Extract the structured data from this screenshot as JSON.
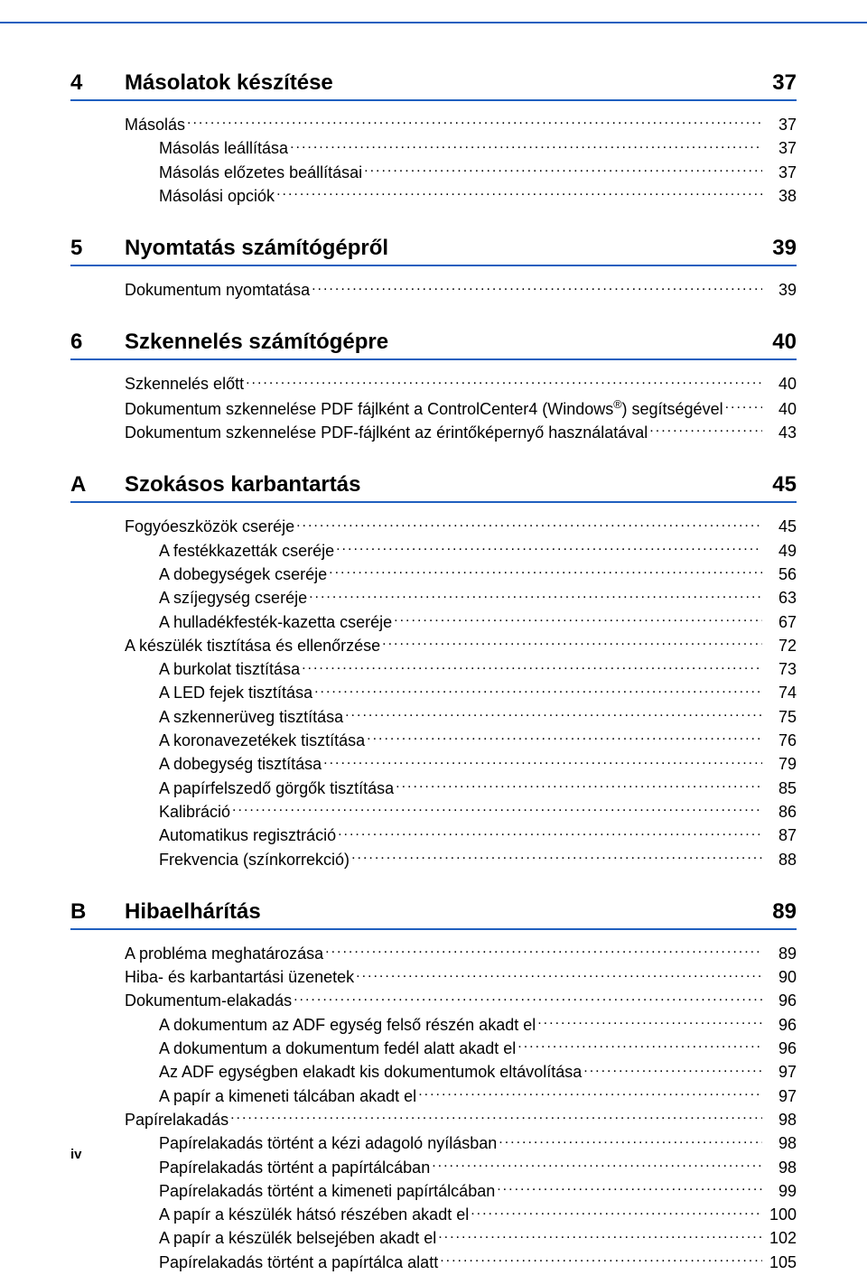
{
  "colors": {
    "rule": "#1f5fbf",
    "text": "#000000",
    "page_bg": "#ffffff"
  },
  "typography": {
    "section_fontsize_pt": 18,
    "body_fontsize_pt": 13.5,
    "font_family": "Arial"
  },
  "footer": "iv",
  "sections": [
    {
      "num": "4",
      "title": "Másolatok készítése",
      "page": "37",
      "items": [
        {
          "label": "Másolás",
          "page": "37",
          "indent": 0
        },
        {
          "label": "Másolás leállítása",
          "page": "37",
          "indent": 1
        },
        {
          "label": "Másolás előzetes beállításai",
          "page": "37",
          "indent": 1
        },
        {
          "label": "Másolási opciók",
          "page": "38",
          "indent": 1
        }
      ]
    },
    {
      "num": "5",
      "title": "Nyomtatás számítógépről",
      "page": "39",
      "items": [
        {
          "label": "Dokumentum nyomtatása",
          "page": "39",
          "indent": 0
        }
      ]
    },
    {
      "num": "6",
      "title": "Szkennelés számítógépre",
      "page": "40",
      "items": [
        {
          "label": "Szkennelés előtt",
          "page": "40",
          "indent": 0
        },
        {
          "label": "Dokumentum szkennelése PDF fájlként a ControlCenter4 (Windows®) segítségével",
          "page": "40",
          "indent": 0,
          "sup": true
        },
        {
          "label": "Dokumentum szkennelése PDF-fájlként az érintőképernyő használatával",
          "page": "43",
          "indent": 0
        }
      ]
    },
    {
      "num": "A",
      "title": "Szokásos karbantartás",
      "page": "45",
      "items": [
        {
          "label": "Fogyóeszközök cseréje",
          "page": "45",
          "indent": 0
        },
        {
          "label": "A festékkazetták cseréje",
          "page": "49",
          "indent": 1
        },
        {
          "label": "A dobegységek cseréje",
          "page": "56",
          "indent": 1
        },
        {
          "label": "A szíjegység cseréje",
          "page": "63",
          "indent": 1
        },
        {
          "label": "A hulladékfesték-kazetta cseréje",
          "page": "67",
          "indent": 1
        },
        {
          "label": "A készülék tisztítása és ellenőrzése",
          "page": "72",
          "indent": 0
        },
        {
          "label": "A burkolat tisztítása",
          "page": "73",
          "indent": 1
        },
        {
          "label": "A LED fejek tisztítása",
          "page": "74",
          "indent": 1
        },
        {
          "label": "A szkennerüveg tisztítása",
          "page": "75",
          "indent": 1
        },
        {
          "label": "A koronavezetékek tisztítása",
          "page": "76",
          "indent": 1
        },
        {
          "label": "A dobegység tisztítása",
          "page": "79",
          "indent": 1
        },
        {
          "label": "A papírfelszedő görgők tisztítása",
          "page": "85",
          "indent": 1
        },
        {
          "label": "Kalibráció",
          "page": "86",
          "indent": 1
        },
        {
          "label": "Automatikus regisztráció",
          "page": "87",
          "indent": 1
        },
        {
          "label": "Frekvencia (színkorrekció)",
          "page": "88",
          "indent": 1
        }
      ]
    },
    {
      "num": "B",
      "title": "Hibaelhárítás",
      "page": "89",
      "items": [
        {
          "label": "A probléma meghatározása",
          "page": "89",
          "indent": 0
        },
        {
          "label": "Hiba- és karbantartási üzenetek",
          "page": "90",
          "indent": 0
        },
        {
          "label": "Dokumentum-elakadás",
          "page": "96",
          "indent": 0
        },
        {
          "label": "A dokumentum az ADF egység felső részén akadt el",
          "page": "96",
          "indent": 1
        },
        {
          "label": "A dokumentum a dokumentum fedél alatt akadt el",
          "page": "96",
          "indent": 1
        },
        {
          "label": "Az ADF egységben elakadt kis dokumentumok eltávolítása",
          "page": "97",
          "indent": 1
        },
        {
          "label": "A papír a kimeneti tálcában akadt el",
          "page": "97",
          "indent": 1
        },
        {
          "label": "Papírelakadás",
          "page": "98",
          "indent": 0
        },
        {
          "label": "Papírelakadás történt a kézi adagoló nyílásban",
          "page": "98",
          "indent": 1
        },
        {
          "label": "Papírelakadás történt a papírtálcában",
          "page": "98",
          "indent": 1
        },
        {
          "label": "Papírelakadás történt a kimeneti papírtálcában",
          "page": "99",
          "indent": 1
        },
        {
          "label": "A papír a készülék hátsó részében akadt el",
          "page": "100",
          "indent": 1
        },
        {
          "label": "A papír a készülék belsejében akadt el",
          "page": "102",
          "indent": 1
        },
        {
          "label": "Papírelakadás történt a papírtálca alatt",
          "page": "105",
          "indent": 1
        }
      ]
    }
  ]
}
